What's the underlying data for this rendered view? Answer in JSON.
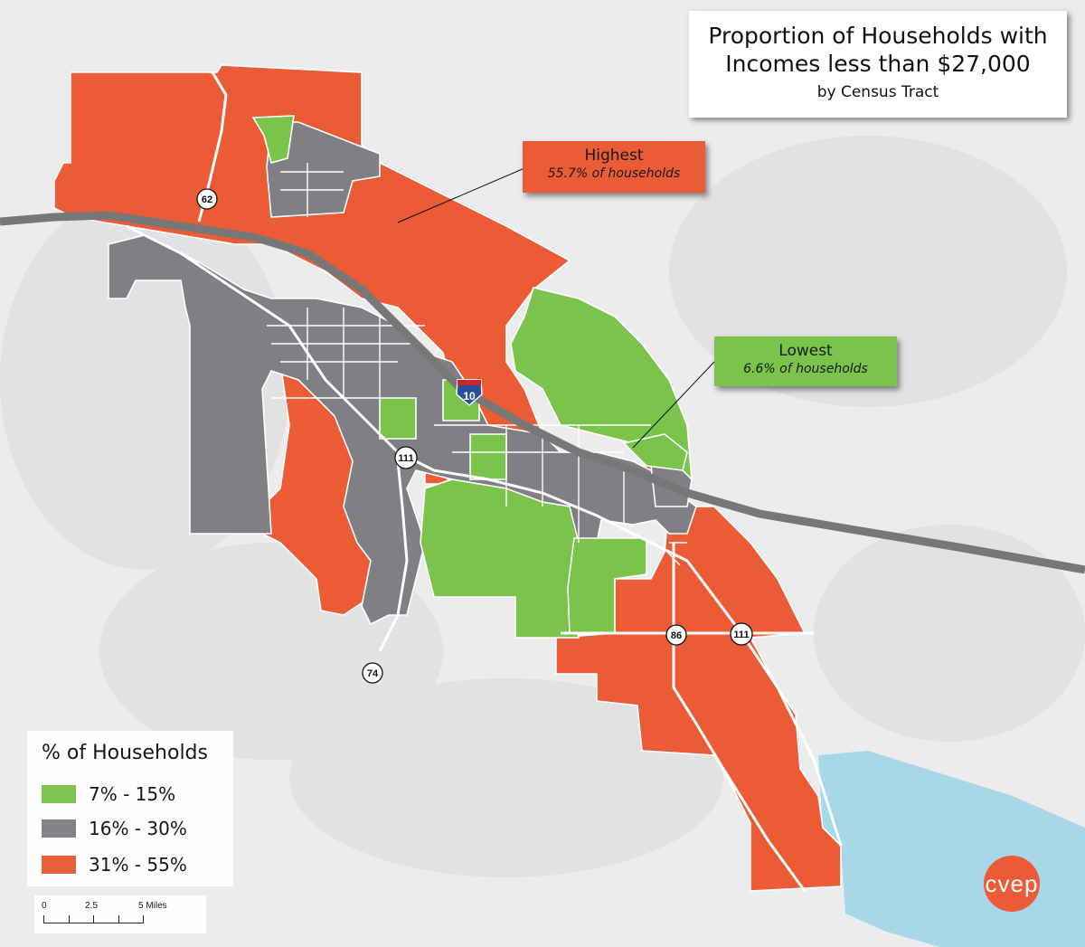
{
  "title": {
    "line1": "Proportion of Households with",
    "line2": "Incomes less than $27,000",
    "subtitle": "by Census Tract"
  },
  "callouts": {
    "highest": {
      "label": "Highest",
      "value": "55.7% of households",
      "color": "#ea5b36"
    },
    "lowest": {
      "label": "Lowest",
      "value": "6.6% of households",
      "color": "#7ac44b"
    }
  },
  "legend": {
    "title": "% of Households",
    "items": [
      {
        "label": "7% - 15%",
        "color": "#7ac44b"
      },
      {
        "label": "16% - 30%",
        "color": "#808084"
      },
      {
        "label": "31% - 55%",
        "color": "#ea5b36"
      }
    ]
  },
  "scale_bar": {
    "labels": [
      "0",
      "2.5",
      "5 Miles"
    ]
  },
  "routes": {
    "interstate": "10",
    "highways": [
      "62",
      "111",
      "111",
      "86",
      "74"
    ]
  },
  "logo": {
    "text": "cvep"
  },
  "colors": {
    "background": "#ececec",
    "water": "#a8d8e8",
    "road": "#777777"
  }
}
